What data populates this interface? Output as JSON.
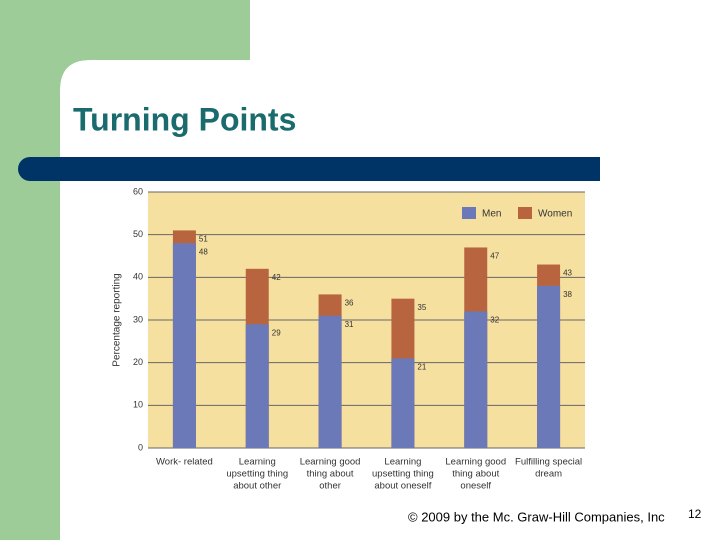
{
  "slide": {
    "title": "Turning Points",
    "footer": "© 2009 by the Mc. Graw-Hill Companies, Inc",
    "page_number": 12
  },
  "chart_data": {
    "type": "bar",
    "mode": "overlap",
    "categories": [
      [
        "Work- related"
      ],
      [
        "Learning",
        "upsetting thing",
        "about other"
      ],
      [
        "Learning good",
        "thing about",
        "other"
      ],
      [
        "Learning",
        "upsetting thing",
        "about oneself"
      ],
      [
        "Learning good",
        "thing about",
        "oneself"
      ],
      [
        "Fulfilling special",
        "dream"
      ]
    ],
    "series": [
      {
        "name": "Women",
        "color": "#b8653f",
        "values": [
          51,
          42,
          36,
          35,
          47,
          43
        ]
      },
      {
        "name": "Men",
        "color": "#6b79b9",
        "values": [
          48,
          29,
          31,
          21,
          32,
          38
        ]
      }
    ],
    "legend_order": [
      1,
      0
    ],
    "y_label": "Percentage reporting",
    "ylim": [
      0,
      60
    ],
    "yticks": [
      0,
      10,
      20,
      30,
      40,
      50,
      60
    ],
    "grid": true,
    "legend": "top-right"
  }
}
